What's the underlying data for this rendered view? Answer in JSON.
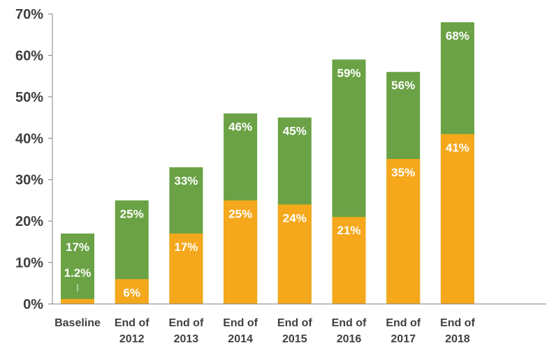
{
  "chart_data": {
    "type": "bar",
    "stacked": false,
    "overlay": true,
    "categories": [
      "Baseline",
      "End of 2012",
      "End of 2013",
      "End of 2014",
      "End of 2015",
      "End of 2016",
      "End of 2017",
      "End of 2018"
    ],
    "category_lines": [
      [
        "Baseline"
      ],
      [
        "End of",
        "2012"
      ],
      [
        "End of",
        "2013"
      ],
      [
        "End of",
        "2014"
      ],
      [
        "End of",
        "2015"
      ],
      [
        "End of",
        "2016"
      ],
      [
        "End of",
        "2017"
      ],
      [
        "End of",
        "2018"
      ]
    ],
    "series": [
      {
        "color": "#6aa245",
        "values": [
          17,
          25,
          33,
          46,
          45,
          59,
          56,
          68
        ],
        "labels": [
          "17%",
          "25%",
          "33%",
          "46%",
          "45%",
          "59%",
          "56%",
          "68%"
        ]
      },
      {
        "color": "#f5a81c",
        "values": [
          1.2,
          6,
          17,
          25,
          24,
          21,
          35,
          41
        ],
        "labels": [
          "1.2%",
          "6%",
          "17%",
          "25%",
          "24%",
          "21%",
          "35%",
          "41%"
        ]
      }
    ],
    "yticks": [
      "0%",
      "10%",
      "20%",
      "30%",
      "40%",
      "50%",
      "60%",
      "70%"
    ],
    "ylim": [
      0,
      70
    ],
    "grid": false,
    "axis_color": "#808080"
  }
}
